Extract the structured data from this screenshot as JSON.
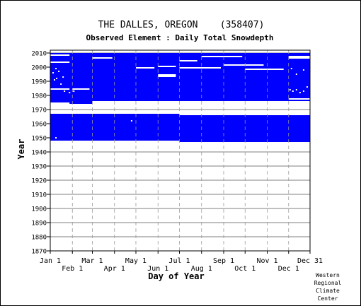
{
  "chart_data": {
    "type": "heatmap",
    "title": "THE DALLES, OREGON    (358407)",
    "subtitle": "Observed Element : Daily Total Snowdepth",
    "xlabel": "Day of Year",
    "ylabel": "Year",
    "xlim": [
      1,
      365
    ],
    "ylim": [
      1870,
      2012
    ],
    "x_ticks": [
      {
        "label": "Jan 1",
        "day": 1,
        "row": 1
      },
      {
        "label": "Feb 1",
        "day": 32,
        "row": 2
      },
      {
        "label": "Mar 1",
        "day": 60,
        "row": 1
      },
      {
        "label": "Apr 1",
        "day": 91,
        "row": 2
      },
      {
        "label": "May 1",
        "day": 121,
        "row": 1
      },
      {
        "label": "Jun 1",
        "day": 152,
        "row": 2
      },
      {
        "label": "Jul 1",
        "day": 182,
        "row": 1
      },
      {
        "label": "Aug 1",
        "day": 213,
        "row": 2
      },
      {
        "label": "Sep 1",
        "day": 244,
        "row": 1
      },
      {
        "label": "Oct 1",
        "day": 274,
        "row": 2
      },
      {
        "label": "Nov 1",
        "day": 305,
        "row": 1
      },
      {
        "label": "Dec 1",
        "day": 335,
        "row": 2
      },
      {
        "label": "Dec 31",
        "day": 365,
        "row": 1
      }
    ],
    "y_ticks": [
      1870,
      1880,
      1890,
      1900,
      1910,
      1920,
      1930,
      1940,
      1950,
      1960,
      1970,
      1980,
      1990,
      2000,
      2010
    ],
    "grid": true,
    "color": "#0000ff",
    "observed_blocks": [
      {
        "year_start": 1948,
        "year_end": 1967,
        "day_start": 1,
        "day_end": 182
      },
      {
        "year_start": 1947,
        "year_end": 1966,
        "day_start": 182,
        "day_end": 365
      },
      {
        "year_start": 1974,
        "year_end": 2010,
        "day_start": 1,
        "day_end": 365
      }
    ],
    "missing_blocks": [
      {
        "year_start": 1974,
        "year_end": 1975,
        "day_start": 1,
        "day_end": 28
      },
      {
        "year_start": 2008,
        "year_end": 2009,
        "day_start": 1,
        "day_end": 28
      },
      {
        "year_start": 2003,
        "year_end": 2004,
        "day_start": 1,
        "day_end": 28
      },
      {
        "year_start": 1974,
        "year_end": 1976,
        "day_start": 60,
        "day_end": 365
      },
      {
        "year_start": 2006,
        "year_end": 2007,
        "day_start": 60,
        "day_end": 88
      },
      {
        "year_start": 1999,
        "year_end": 2000,
        "day_start": 121,
        "day_end": 147
      },
      {
        "year_start": 2000,
        "year_end": 2001,
        "day_start": 152,
        "day_end": 177
      },
      {
        "year_start": 1993,
        "year_end": 1995,
        "day_start": 152,
        "day_end": 177
      },
      {
        "year_start": 2004,
        "year_end": 2005,
        "day_start": 182,
        "day_end": 207
      },
      {
        "year_start": 1999,
        "year_end": 2000,
        "day_start": 182,
        "day_end": 240
      },
      {
        "year_start": 2007,
        "year_end": 2008,
        "day_start": 213,
        "day_end": 270
      },
      {
        "year_start": 2001,
        "year_end": 2002,
        "day_start": 244,
        "day_end": 300
      },
      {
        "year_start": 1998,
        "year_end": 1999,
        "day_start": 274,
        "day_end": 328
      },
      {
        "year_start": 2006,
        "year_end": 2008,
        "day_start": 335,
        "day_end": 365
      },
      {
        "year_start": 1977,
        "year_end": 1978,
        "day_start": 335,
        "day_end": 365
      },
      {
        "year_start": 1984,
        "year_end": 1985,
        "day_start": 1,
        "day_end": 28
      },
      {
        "year_start": 1984,
        "year_end": 1985,
        "day_start": 32,
        "day_end": 56
      }
    ],
    "missing_days": [
      {
        "year": 1996,
        "day": 4
      },
      {
        "year": 1991,
        "day": 6
      },
      {
        "year": 1992,
        "day": 9
      },
      {
        "year": 1997,
        "day": 12
      },
      {
        "year": 1988,
        "day": 15
      },
      {
        "year": 1993,
        "day": 18
      },
      {
        "year": 1999,
        "day": 8
      },
      {
        "year": 1983,
        "day": 20
      },
      {
        "year": 1950,
        "day": 8
      },
      {
        "year": 1982,
        "day": 27
      },
      {
        "year": 1983,
        "day": 33
      },
      {
        "year": 1962,
        "day": 114
      },
      {
        "year": 1984,
        "day": 336
      },
      {
        "year": 1983,
        "day": 340
      },
      {
        "year": 1984,
        "day": 345
      },
      {
        "year": 1982,
        "day": 350
      },
      {
        "year": 1983,
        "day": 355
      },
      {
        "year": 1999,
        "day": 338
      },
      {
        "year": 1995,
        "day": 345
      },
      {
        "year": 1986,
        "day": 360
      },
      {
        "year": 1998,
        "day": 355
      }
    ]
  },
  "credit": [
    "Western",
    "Regional",
    "Climate",
    "Center"
  ]
}
